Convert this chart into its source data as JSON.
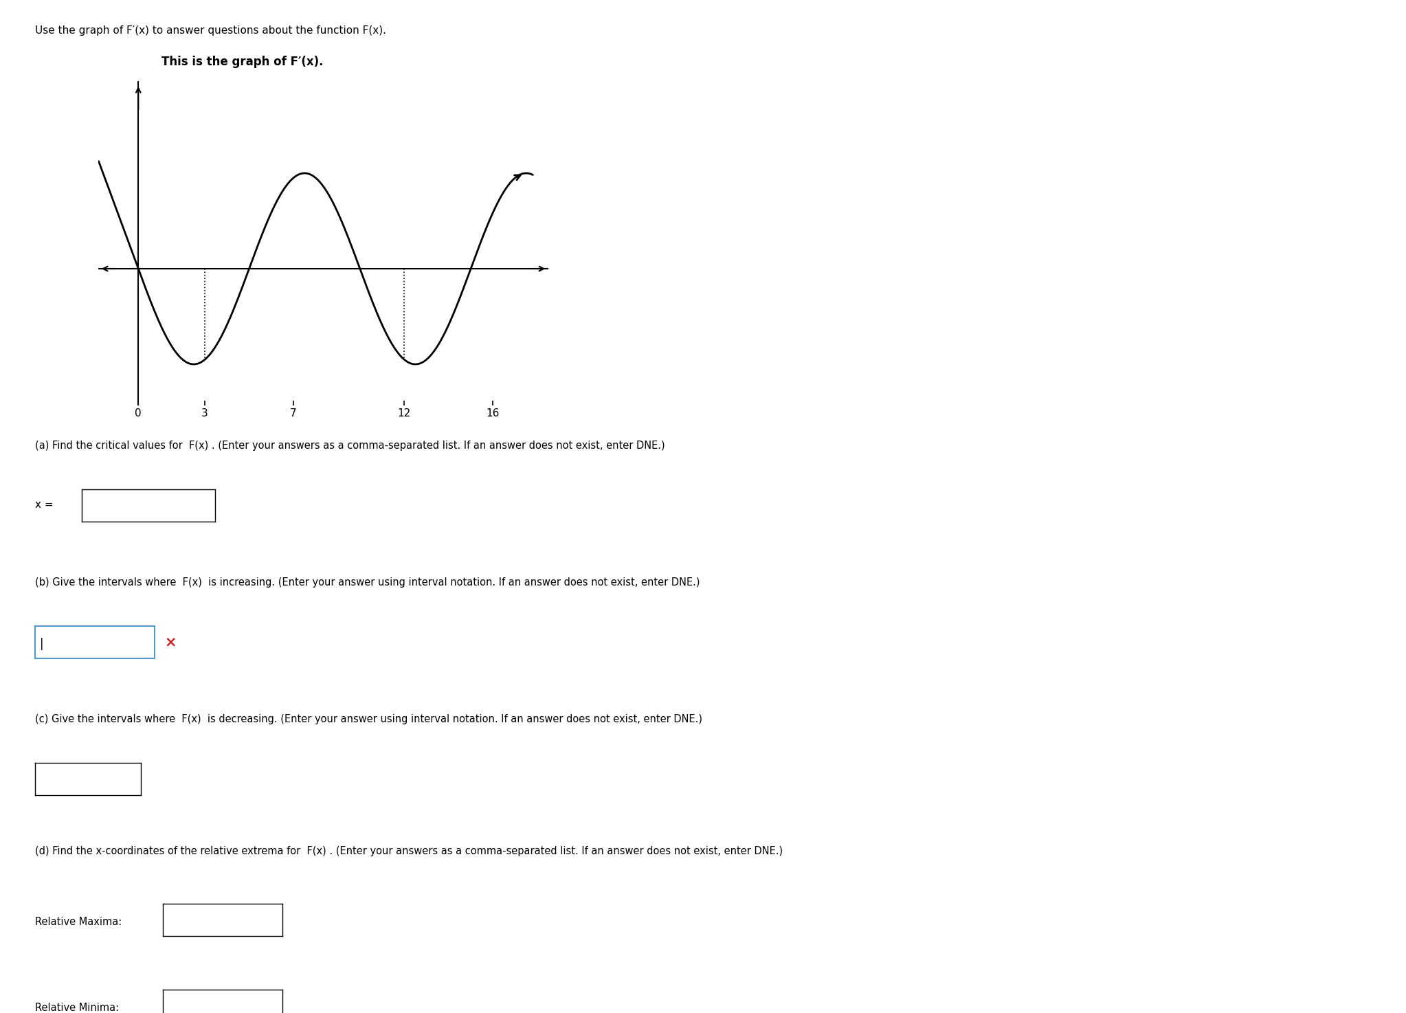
{
  "page_title": "Use the graph of F′(x) to answer questions about the function F(x).",
  "graph_subtitle": "This is the graph of F′(x).",
  "background_color": "#ffffff",
  "text_color": "#000000",
  "curve_color": "#000000",
  "axis_color": "#000000",
  "dotted_line_color": "#000000",
  "x_ticks": [
    0,
    3,
    7,
    12,
    16
  ],
  "graph_xlim": [
    -1.8,
    18.5
  ],
  "graph_ylim": [
    -4.0,
    5.5
  ],
  "A": 2.8,
  "omega_denom": 5.0,
  "line_slope": -1.76,
  "question_a": "(a) Find the critical values for  F(x) . (Enter your answers as a comma-separated list. If an answer does not exist, enter DNE.)",
  "question_b": "(b) Give the intervals where  F(x)  is increasing. (Enter your answer using interval notation. If an answer does not exist, enter DNE.)",
  "question_c": "(c) Give the intervals where  F(x)  is decreasing. (Enter your answer using interval notation. If an answer does not exist, enter DNE.)",
  "question_d": "(d) Find the x-coordinates of the relative extrema for  F(x) . (Enter your answers as a comma-separated list. If an answer does not exist, enter DNE.)",
  "label_a": "x =",
  "label_rel_max": "Relative Maxima:",
  "label_rel_min": "Relative Minima:",
  "subtitle_color": "#000000",
  "subtitle_fontsize": 12,
  "title_fontsize": 11,
  "question_fontsize": 10.5,
  "tick_fontsize": 11
}
